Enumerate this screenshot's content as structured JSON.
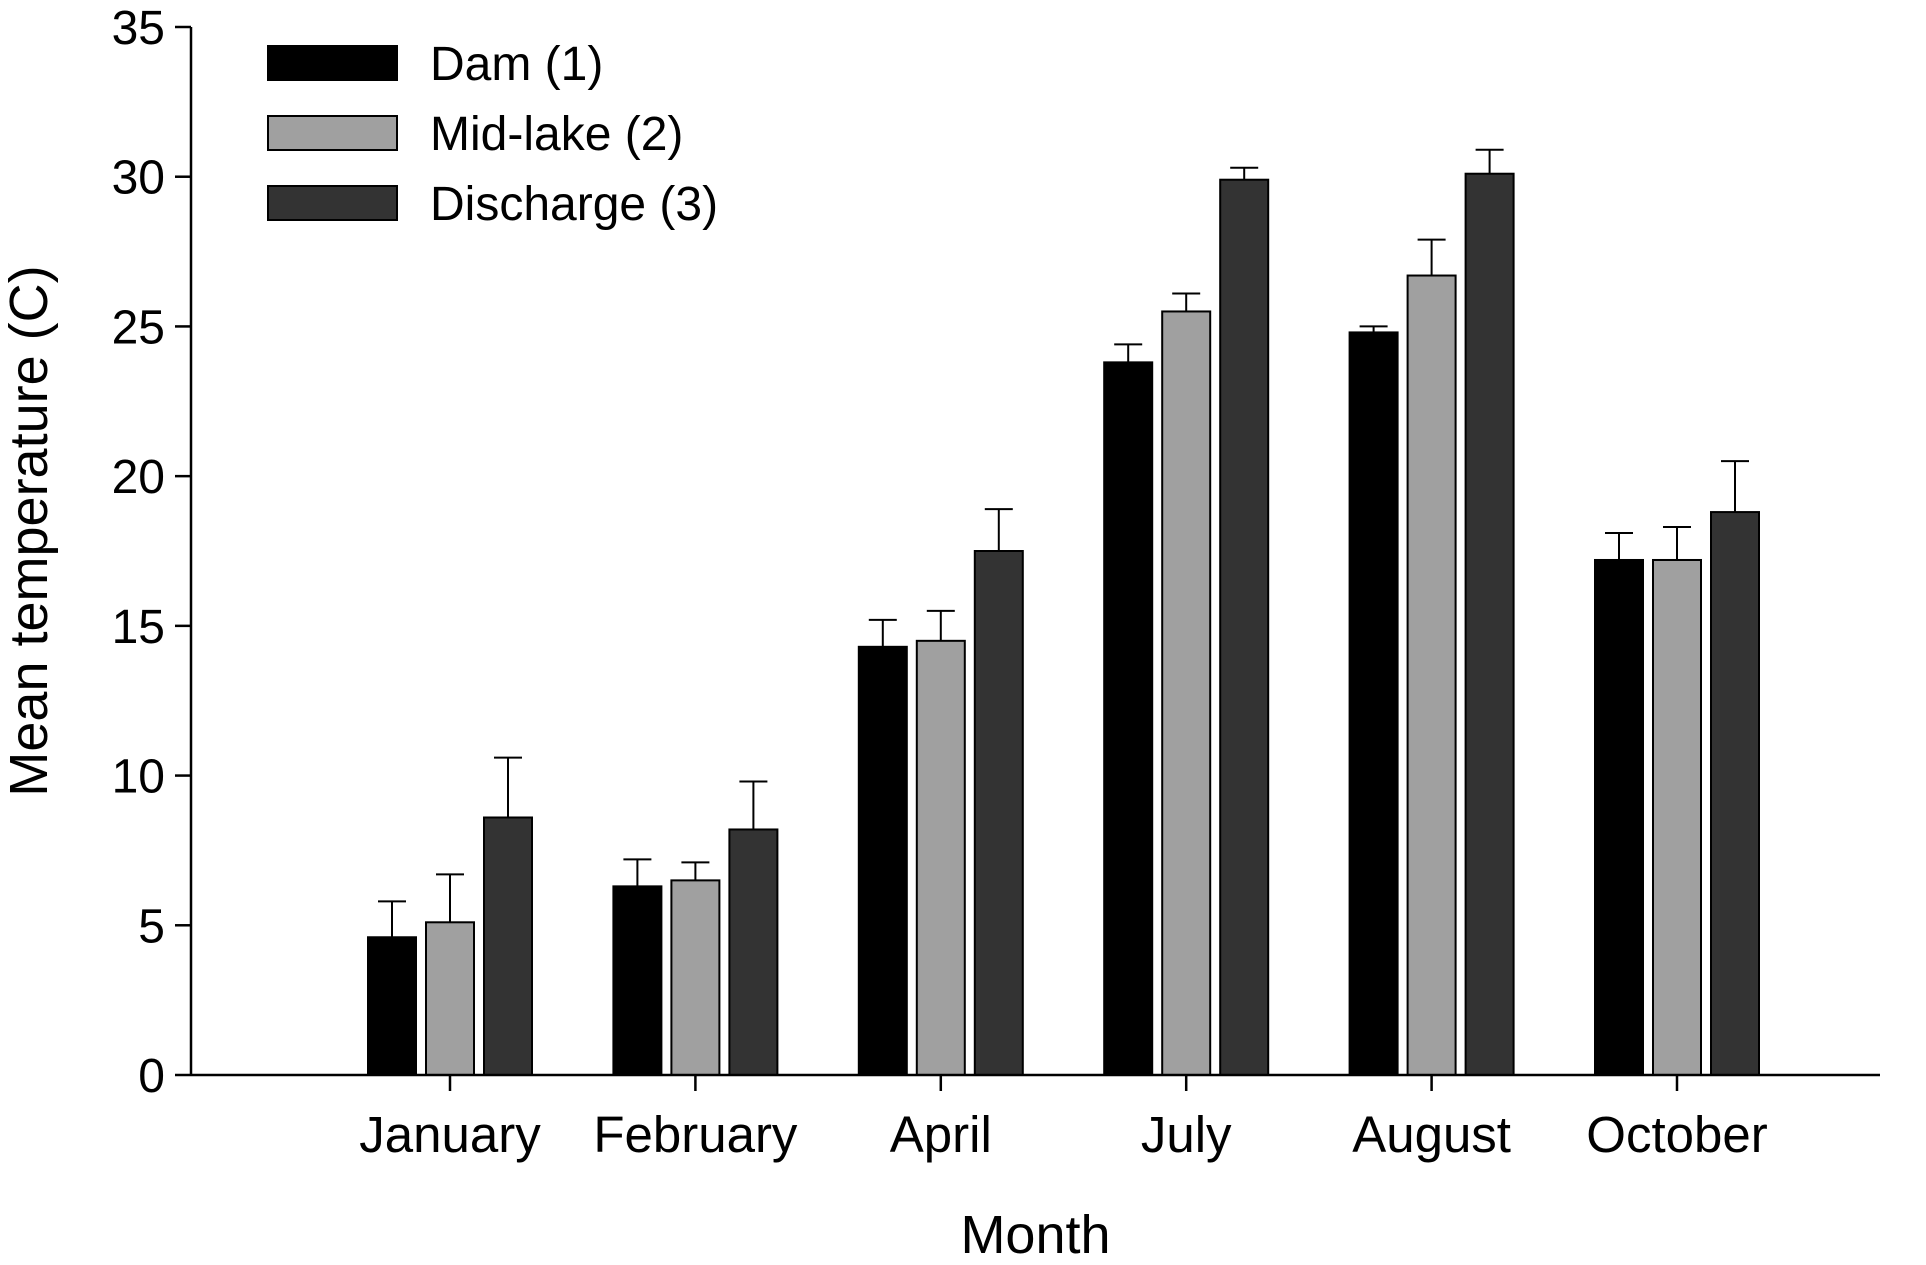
{
  "chart_data": {
    "type": "bar",
    "title": "",
    "xlabel": "Month",
    "ylabel": "Mean temperature (C)",
    "categories": [
      "January",
      "February",
      "April",
      "July",
      "August",
      "October"
    ],
    "ylim": [
      0,
      35
    ],
    "yticks": [
      0,
      5,
      10,
      15,
      20,
      25,
      30,
      35
    ],
    "ytick_labels": [
      "0",
      "5",
      "10",
      "15",
      "20",
      "25",
      "30",
      "35"
    ],
    "grid": false,
    "legend_position": "top-left",
    "error_bars": "upper only",
    "series": [
      {
        "name": "Dam (1)",
        "color": "#000000",
        "values": [
          4.6,
          6.3,
          14.3,
          23.8,
          24.8,
          17.2
        ],
        "errors": [
          1.2,
          0.9,
          0.9,
          0.6,
          0.2,
          0.9
        ]
      },
      {
        "name": "Mid-lake (2)",
        "color": "#a0a0a0",
        "values": [
          5.1,
          6.5,
          14.5,
          25.5,
          26.7,
          17.2
        ],
        "errors": [
          1.6,
          0.6,
          1.0,
          0.6,
          1.2,
          1.1
        ]
      },
      {
        "name": "Discharge (3)",
        "color": "#333333",
        "values": [
          8.6,
          8.2,
          17.5,
          29.9,
          30.1,
          18.8
        ],
        "errors": [
          2.0,
          1.6,
          1.4,
          0.4,
          0.8,
          1.7
        ]
      }
    ]
  }
}
